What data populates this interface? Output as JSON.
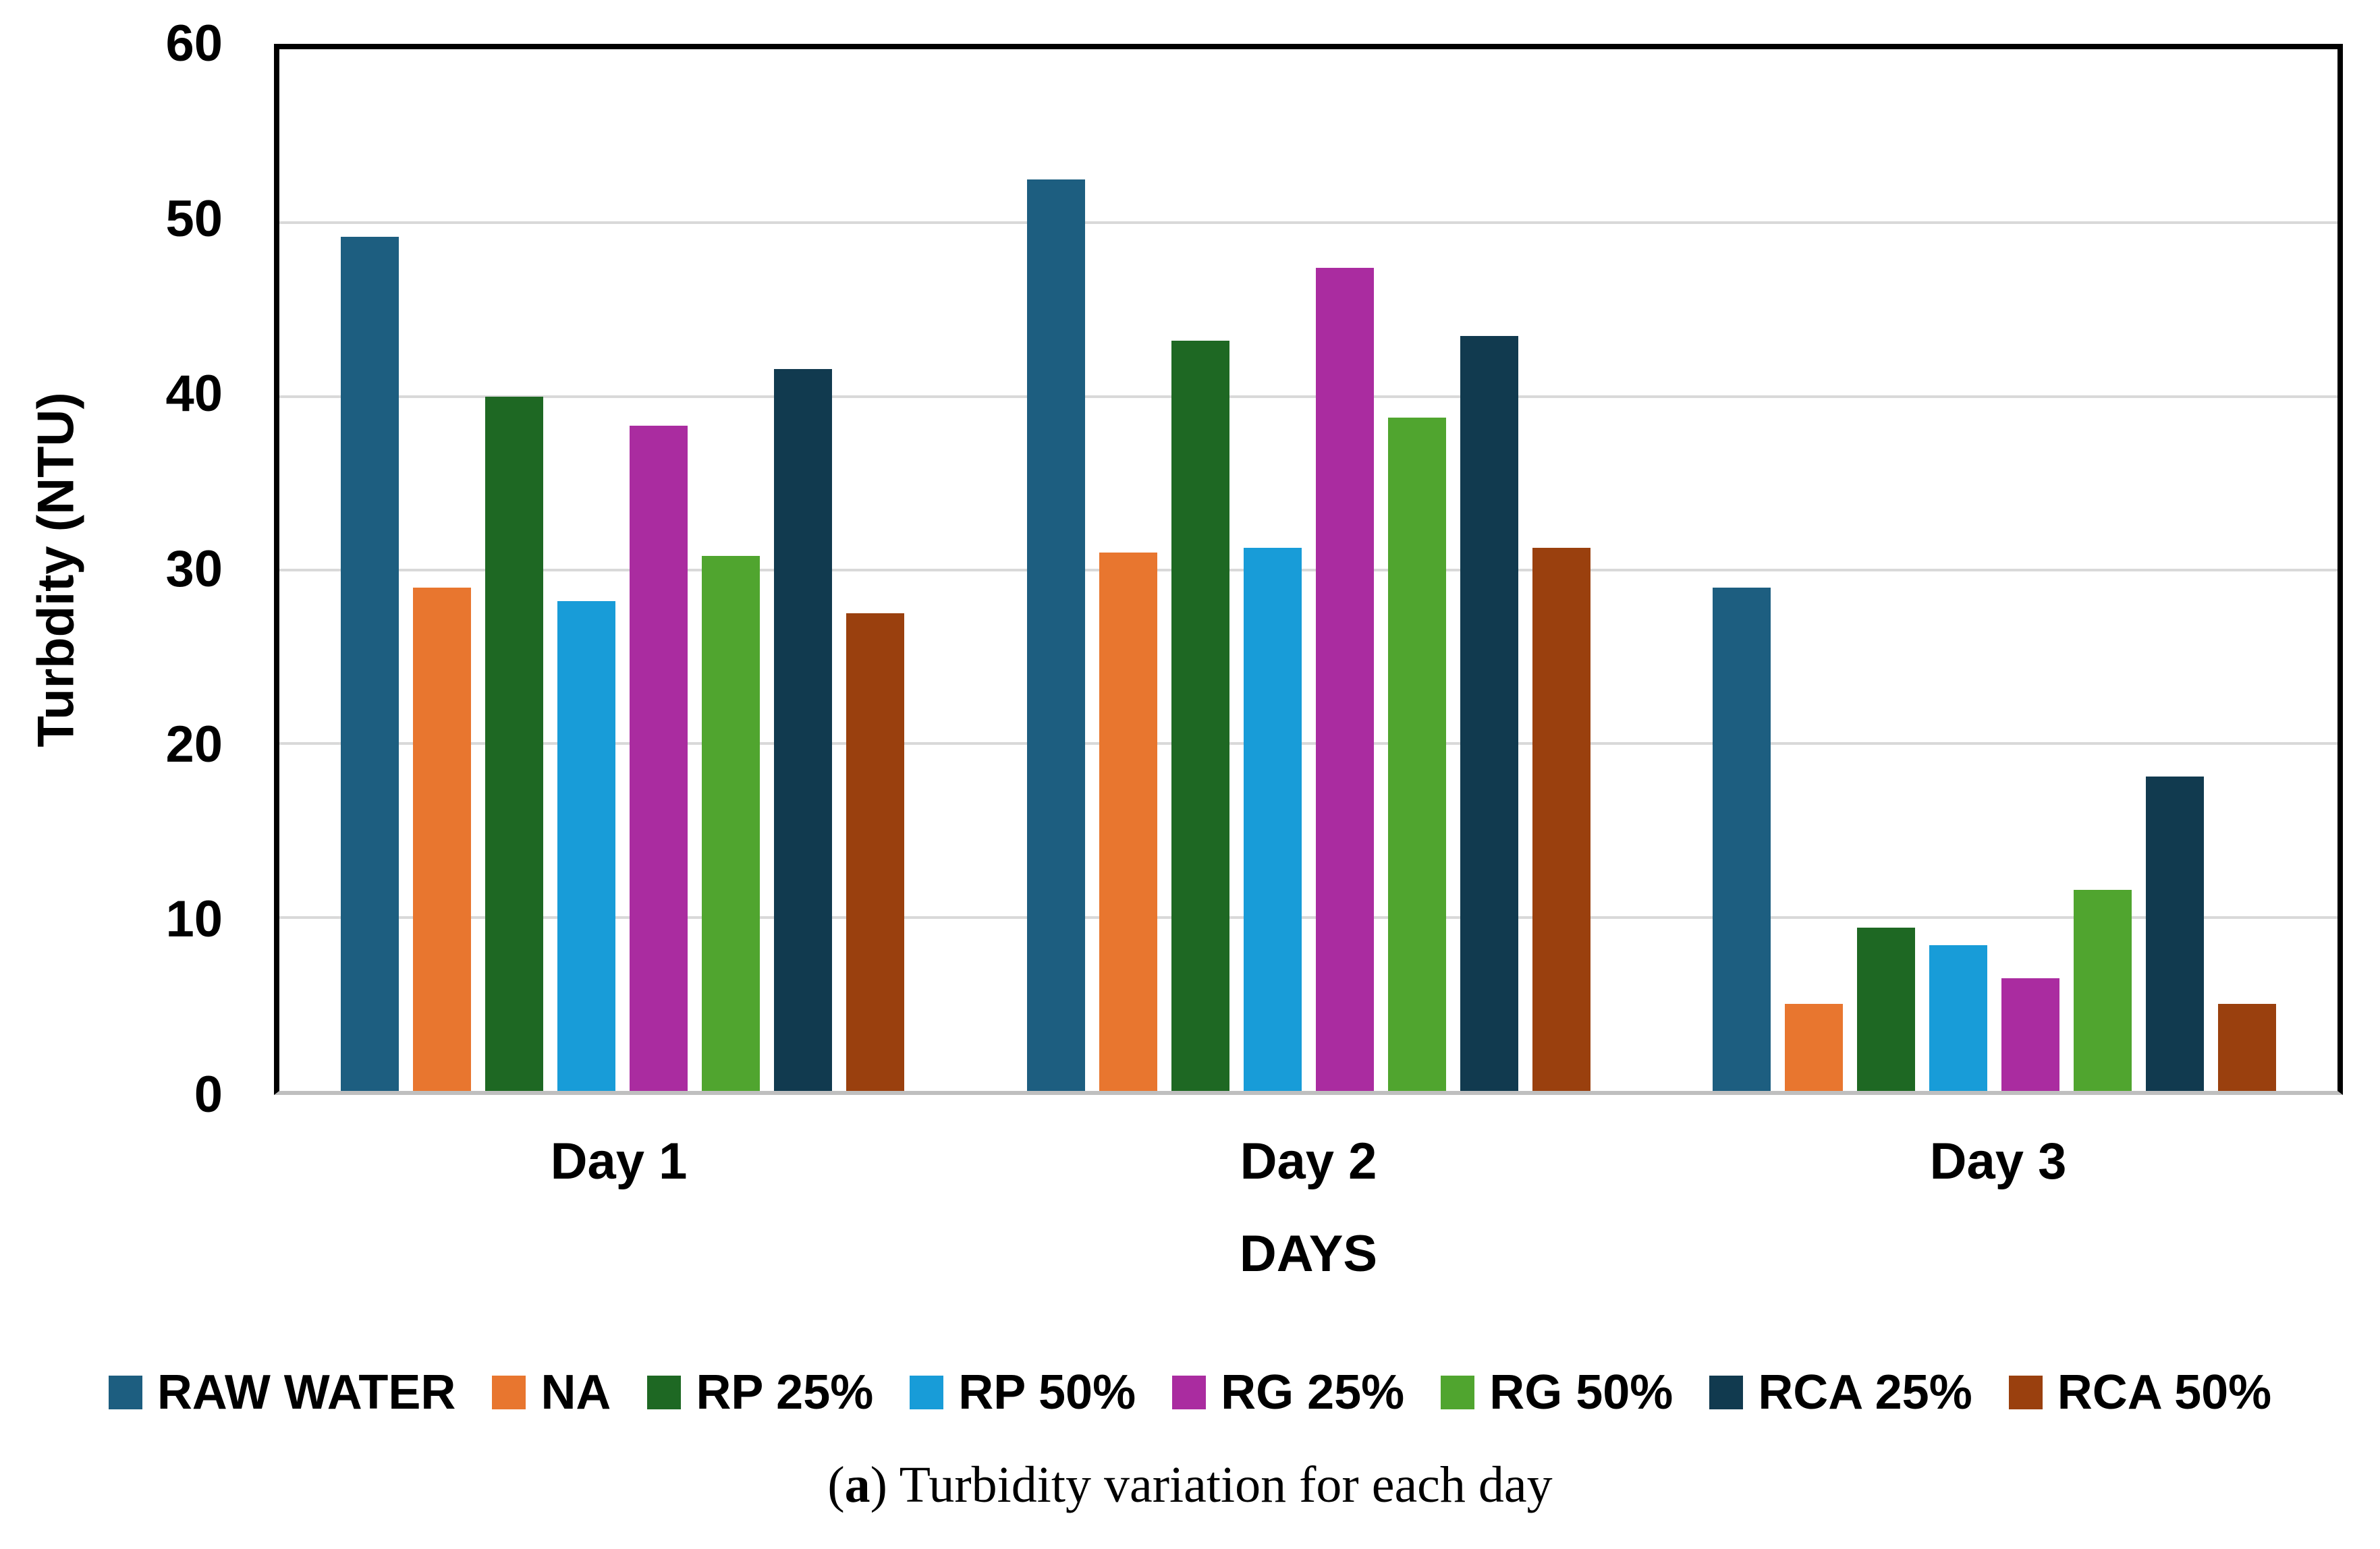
{
  "figure": {
    "caption": {
      "open": "(",
      "letter": "a",
      "rest": ") Turbidity variation for each day"
    }
  },
  "chart_data": {
    "type": "bar",
    "title": "",
    "xlabel": "DAYS",
    "ylabel": "Turbdity (NTU)",
    "ylim": [
      0,
      60
    ],
    "yticks": [
      0,
      10,
      20,
      30,
      40,
      50,
      60
    ],
    "grid": "horizontal",
    "legend_position": "bottom",
    "categories": [
      "Day 1",
      "Day 2",
      "Day 3"
    ],
    "series": [
      {
        "name": "RAW WATER",
        "color": "#1D5E80",
        "values": [
          49.2,
          52.5,
          29.0
        ]
      },
      {
        "name": "NA",
        "color": "#E8762F",
        "values": [
          29.0,
          31.0,
          5.0
        ]
      },
      {
        "name": "RP 25%",
        "color": "#1E6823",
        "values": [
          40.0,
          43.2,
          9.4
        ]
      },
      {
        "name": "RP 50%",
        "color": "#189CD8",
        "values": [
          28.2,
          31.3,
          8.4
        ]
      },
      {
        "name": "RG 25%",
        "color": "#AA2CA0",
        "values": [
          38.3,
          47.4,
          6.5
        ]
      },
      {
        "name": "RG 50%",
        "color": "#50A52F",
        "values": [
          30.8,
          38.8,
          11.6
        ]
      },
      {
        "name": "RCA 25%",
        "color": "#113A4F",
        "values": [
          41.6,
          43.5,
          18.1
        ]
      },
      {
        "name": "RCA 50%",
        "color": "#9A400E",
        "values": [
          27.5,
          31.3,
          5.0
        ]
      }
    ],
    "colors": {
      "gridline": "#D9D9D9",
      "axis_frame": "#000000",
      "baseline": "#BFBFBF",
      "background": "#FFFFFF"
    }
  }
}
